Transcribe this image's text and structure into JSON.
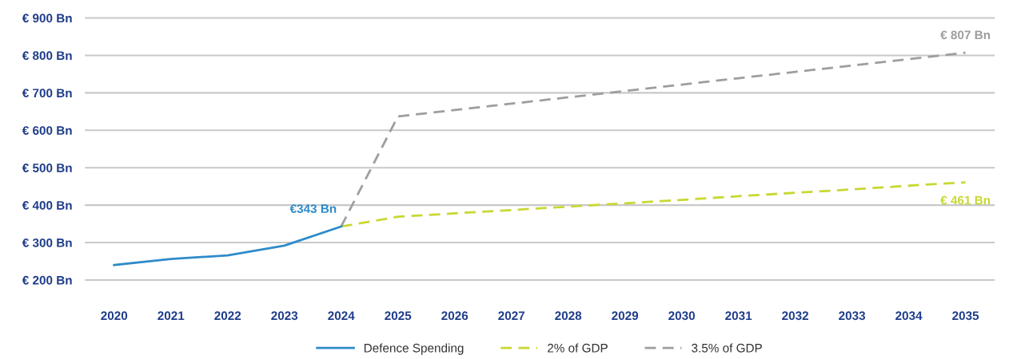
{
  "chart_data": {
    "type": "line",
    "categories": [
      "2020",
      "2021",
      "2022",
      "2023",
      "2024",
      "2025",
      "2026",
      "2027",
      "2028",
      "2029",
      "2030",
      "2031",
      "2032",
      "2033",
      "2034",
      "2035"
    ],
    "series": [
      {
        "name": "Defence Spending",
        "color": "#2e8bc9",
        "line_style": "solid",
        "values": [
          240,
          256,
          266,
          292,
          343,
          null,
          null,
          null,
          null,
          null,
          null,
          null,
          null,
          null,
          null,
          null
        ]
      },
      {
        "name": "2% of GDP",
        "color": "#c8d832",
        "line_style": "dashed",
        "values": [
          null,
          null,
          null,
          null,
          343,
          369,
          378,
          387,
          396,
          405,
          414,
          424,
          433,
          442,
          452,
          461
        ]
      },
      {
        "name": "3.5% of GDP",
        "color": "#9e9e9e",
        "line_style": "dashed",
        "values": [
          null,
          null,
          null,
          null,
          343,
          637,
          654,
          671,
          688,
          705,
          722,
          739,
          756,
          773,
          790,
          807
        ]
      }
    ],
    "ylim": [
      200,
      900
    ],
    "yticks": [
      {
        "value": 200,
        "label": "€ 200 Bn"
      },
      {
        "value": 300,
        "label": "€ 300 Bn"
      },
      {
        "value": 400,
        "label": "€ 400 Bn"
      },
      {
        "value": 500,
        "label": "€ 500 Bn"
      },
      {
        "value": 600,
        "label": "€ 600 Bn"
      },
      {
        "value": 700,
        "label": "€ 700 Bn"
      },
      {
        "value": 800,
        "label": "€ 800 Bn"
      },
      {
        "value": 900,
        "label": "€ 900 Bn"
      }
    ],
    "annotations": [
      {
        "text": "€343 Bn",
        "x": "2024",
        "y": 343
      },
      {
        "text": "€ 807 Bn",
        "x": "2035",
        "y": 807
      },
      {
        "text": "€ 461 Bn",
        "x": "2035",
        "y": 461
      }
    ],
    "grid": "y",
    "legend": "bottom",
    "marker": "none"
  }
}
